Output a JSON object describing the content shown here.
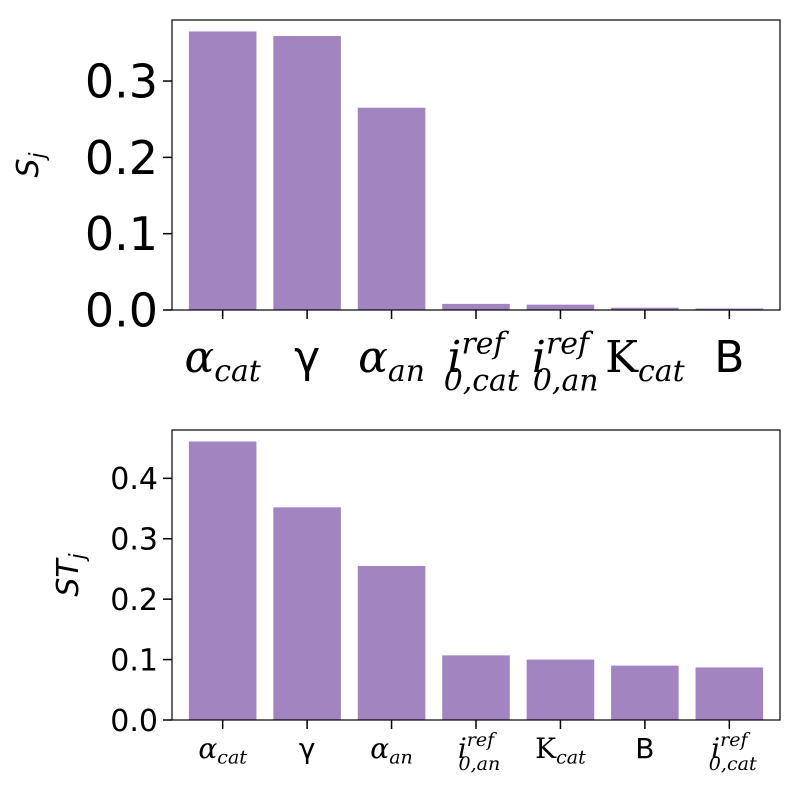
{
  "chart_data": [
    {
      "type": "bar",
      "ylabel": "S_j",
      "ylim": [
        0,
        0.38
      ],
      "yticks": [
        "0.0",
        "0.1",
        "0.2",
        "0.3"
      ],
      "categories": [
        "α_cat",
        "γ",
        "α_an",
        "i_{0,cat}^{ref}",
        "i_{0,an}^{ref}",
        "K_cat",
        "B"
      ],
      "values": [
        0.365,
        0.359,
        0.265,
        0.008,
        0.007,
        0.003,
        0.002
      ],
      "bar_color": "#a284c0",
      "grid": false
    },
    {
      "type": "bar",
      "ylabel": "ST_j",
      "ylim": [
        0,
        0.48
      ],
      "yticks": [
        "0.0",
        "0.1",
        "0.2",
        "0.3",
        "0.4"
      ],
      "categories": [
        "α_cat",
        "γ",
        "α_an",
        "i_{0,an}^{ref}",
        "K_cat",
        "B",
        "i_{0,cat}^{ref}"
      ],
      "values": [
        0.461,
        0.352,
        0.255,
        0.107,
        0.1,
        0.09,
        0.087
      ],
      "bar_color": "#a284c0",
      "grid": false
    }
  ]
}
